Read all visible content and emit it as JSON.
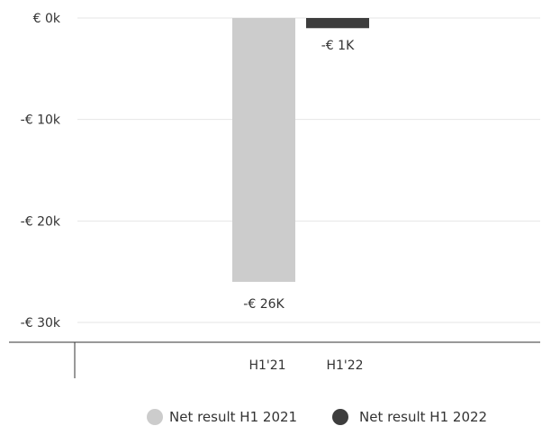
{
  "chart_data": {
    "type": "bar",
    "categories": [
      "H1'21",
      "H1'22"
    ],
    "series": [
      {
        "name": "Net result H1 2021",
        "values": [
          -26,
          null
        ],
        "color": "#cccccc"
      },
      {
        "name": "Net result H1 2022",
        "values": [
          null,
          -1
        ],
        "color": "#3d3d3d"
      }
    ],
    "data_labels": [
      "-€ 26K",
      "-€ 1K"
    ],
    "y_ticks": [
      {
        "value": 0,
        "label": "€ 0k"
      },
      {
        "value": -10,
        "label": "-€ 10k"
      },
      {
        "value": -20,
        "label": "-€ 20k"
      },
      {
        "value": -30,
        "label": "-€ 30k"
      }
    ],
    "ylim": [
      -30,
      0
    ],
    "ylabel": "",
    "xlabel": "",
    "title": "",
    "grid": true,
    "legend_position": "bottom-right",
    "colors": {
      "grid": "#e6e6e6",
      "axis": "#333333",
      "text": "#333333"
    }
  }
}
